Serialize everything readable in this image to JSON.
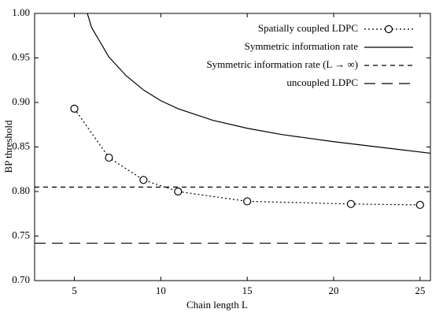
{
  "chart_data": {
    "type": "line",
    "x_label": "Chain length L",
    "y_label": "BP threshold",
    "xlim": [
      2.7,
      25.6
    ],
    "ylim": [
      0.7,
      1.0
    ],
    "xticks": [
      5,
      10,
      15,
      20,
      25
    ],
    "yticks": [
      {
        "value": 0.7,
        "label": "0.70"
      },
      {
        "value": 0.75,
        "label": "0.75"
      },
      {
        "value": 0.8,
        "label": "0.80"
      },
      {
        "value": 0.85,
        "label": "0.85"
      },
      {
        "value": 0.9,
        "label": "0.90"
      },
      {
        "value": 0.95,
        "label": "0.95"
      },
      {
        "value": 1.0,
        "label": "1.00"
      }
    ],
    "legend": "top-right",
    "series": [
      {
        "name": "Spatially coupled LDPC",
        "color": "#000000",
        "style": "dotted",
        "marker": "circle",
        "x": [
          5,
          7,
          9,
          11,
          15,
          21,
          25
        ],
        "values": [
          0.893,
          0.838,
          0.813,
          0.8,
          0.789,
          0.786,
          0.785
        ]
      },
      {
        "name": "Symmetric information rate",
        "color": "#000000",
        "style": "solid",
        "x": [
          5.75,
          6,
          7,
          8,
          9,
          10,
          11,
          13,
          15,
          17,
          20,
          23,
          25.6
        ],
        "values": [
          1.0,
          0.984,
          0.951,
          0.93,
          0.914,
          0.902,
          0.893,
          0.88,
          0.871,
          0.864,
          0.856,
          0.849,
          0.843
        ]
      },
      {
        "name": "Symmetric information rate (L → ∞)",
        "color": "#000000",
        "style": "dashed",
        "x": [
          2.7,
          25.6
        ],
        "values": [
          0.805,
          0.805
        ]
      },
      {
        "name": "uncoupled LDPC",
        "color": "#000000",
        "style": "longdash",
        "x": [
          2.7,
          25.6
        ],
        "values": [
          0.742,
          0.742
        ]
      }
    ]
  }
}
